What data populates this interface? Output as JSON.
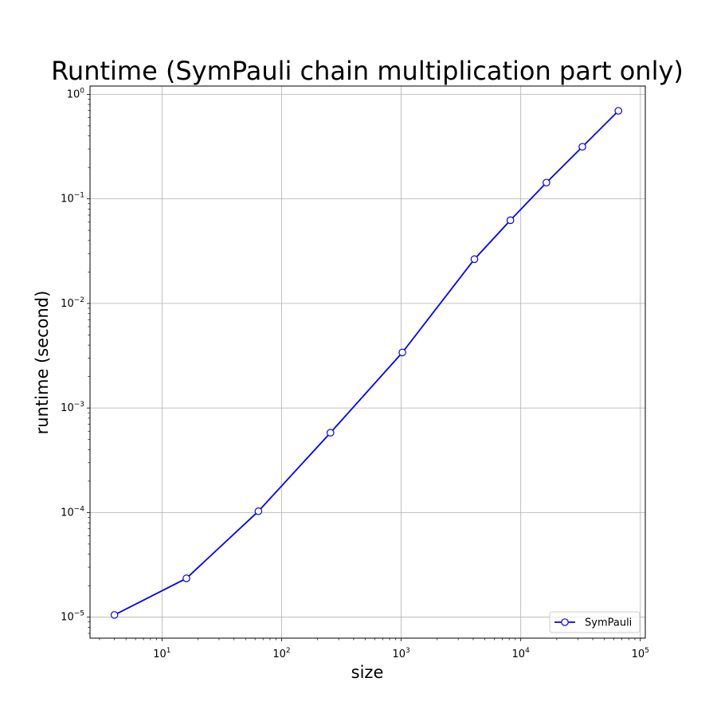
{
  "chart_data": {
    "type": "line",
    "title": "Runtime (SymPauli chain multiplication part only)",
    "xlabel": "size",
    "ylabel": "runtime (second)",
    "xscale": "log",
    "yscale": "log",
    "xlim": [
      2.5,
      110000
    ],
    "ylim": [
      6.3e-06,
      1.2
    ],
    "grid": true,
    "legend_position": "lower-right",
    "x_ticks": [
      {
        "value": 10,
        "base": "10",
        "exp": "1"
      },
      {
        "value": 100,
        "base": "10",
        "exp": "2"
      },
      {
        "value": 1000,
        "base": "10",
        "exp": "3"
      },
      {
        "value": 10000,
        "base": "10",
        "exp": "4"
      },
      {
        "value": 100000,
        "base": "10",
        "exp": "5"
      }
    ],
    "y_ticks": [
      {
        "value": 1e-05,
        "base": "10",
        "exp": "−5"
      },
      {
        "value": 0.0001,
        "base": "10",
        "exp": "−4"
      },
      {
        "value": 0.001,
        "base": "10",
        "exp": "−3"
      },
      {
        "value": 0.01,
        "base": "10",
        "exp": "−2"
      },
      {
        "value": 0.1,
        "base": "10",
        "exp": "−1"
      },
      {
        "value": 1,
        "base": "10",
        "exp": "0"
      }
    ],
    "series": [
      {
        "name": "SymPauli",
        "color": "#0000ff",
        "marker": "circle-open",
        "x": [
          4,
          16,
          64,
          256,
          1024,
          4096,
          8192,
          16384,
          32768,
          65536
        ],
        "y": [
          1.05e-05,
          2.35e-05,
          0.000103,
          0.00058,
          0.0034,
          0.0265,
          0.0625,
          0.143,
          0.315,
          0.695
        ]
      }
    ]
  }
}
